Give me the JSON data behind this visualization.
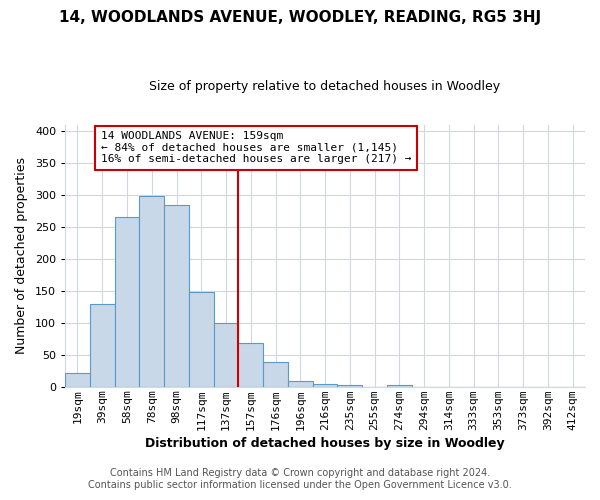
{
  "title": "14, WOODLANDS AVENUE, WOODLEY, READING, RG5 3HJ",
  "subtitle": "Size of property relative to detached houses in Woodley",
  "xlabel": "Distribution of detached houses by size in Woodley",
  "ylabel": "Number of detached properties",
  "bar_labels": [
    "19sqm",
    "39sqm",
    "58sqm",
    "78sqm",
    "98sqm",
    "117sqm",
    "137sqm",
    "157sqm",
    "176sqm",
    "196sqm",
    "216sqm",
    "235sqm",
    "255sqm",
    "274sqm",
    "294sqm",
    "314sqm",
    "333sqm",
    "353sqm",
    "373sqm",
    "392sqm",
    "412sqm"
  ],
  "bar_heights": [
    22,
    130,
    265,
    298,
    285,
    148,
    100,
    68,
    38,
    9,
    5,
    2,
    0,
    3,
    0,
    0,
    0,
    0,
    0,
    0,
    0
  ],
  "bar_color": "#c8d8e8",
  "bar_edge_color": "#5a9ac8",
  "vline_index": 7,
  "vline_color": "#cc0000",
  "annotation_line1": "14 WOODLANDS AVENUE: 159sqm",
  "annotation_line2": "← 84% of detached houses are smaller (1,145)",
  "annotation_line3": "16% of semi-detached houses are larger (217) →",
  "annotation_box_color": "#ffffff",
  "annotation_box_edge": "#cc0000",
  "ylim": [
    0,
    410
  ],
  "yticks": [
    0,
    50,
    100,
    150,
    200,
    250,
    300,
    350,
    400
  ],
  "footer1": "Contains HM Land Registry data © Crown copyright and database right 2024.",
  "footer2": "Contains public sector information licensed under the Open Government Licence v3.0.",
  "background_color": "#ffffff",
  "grid_color": "#d0d8e0",
  "title_fontsize": 11,
  "subtitle_fontsize": 9,
  "ylabel_fontsize": 9,
  "xlabel_fontsize": 9,
  "tick_fontsize": 8,
  "annotation_fontsize": 8,
  "footer_fontsize": 7
}
